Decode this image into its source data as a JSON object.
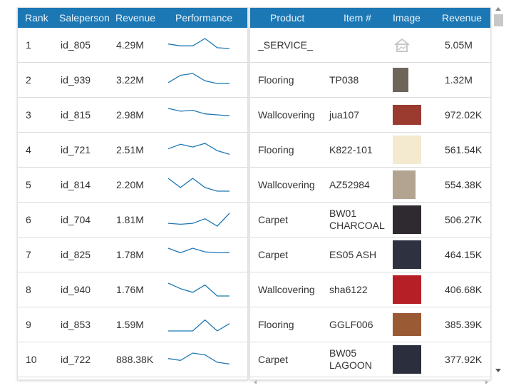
{
  "left_table": {
    "headers": {
      "rank": "Rank",
      "salesperson": "Saleperson",
      "revenue": "Revenue",
      "performance": "Performance"
    },
    "rows": [
      {
        "rank": "1",
        "salesperson": "id_805",
        "revenue": "4.29M",
        "trend": [
          4,
          3,
          3,
          7,
          2,
          1.5
        ]
      },
      {
        "rank": "2",
        "salesperson": "id_939",
        "revenue": "3.22M",
        "trend": [
          2,
          6,
          7,
          3,
          1.5,
          1.5
        ]
      },
      {
        "rank": "3",
        "salesperson": "id_815",
        "revenue": "2.98M",
        "trend": [
          7,
          5.5,
          6,
          4,
          3.5,
          3
        ]
      },
      {
        "rank": "4",
        "salesperson": "id_721",
        "revenue": "2.51M",
        "trend": [
          4,
          6.5,
          5,
          7,
          3,
          1
        ]
      },
      {
        "rank": "5",
        "salesperson": "id_814",
        "revenue": "2.20M",
        "trend": [
          7,
          2,
          7,
          2,
          0,
          0
        ]
      },
      {
        "rank": "6",
        "salesperson": "id_704",
        "revenue": "1.81M",
        "trend": [
          1.5,
          1,
          1.5,
          4,
          0,
          7
        ]
      },
      {
        "rank": "7",
        "salesperson": "id_825",
        "revenue": "1.78M",
        "trend": [
          7,
          4.5,
          7,
          5,
          4.5,
          4.5
        ]
      },
      {
        "rank": "8",
        "salesperson": "id_940",
        "revenue": "1.76M",
        "trend": [
          7,
          4,
          2,
          6,
          0,
          0
        ]
      },
      {
        "rank": "9",
        "salesperson": "id_853",
        "revenue": "1.59M",
        "trend": [
          0,
          0,
          0,
          6,
          0,
          4
        ]
      },
      {
        "rank": "10",
        "salesperson": "id_722",
        "revenue": "888.38K",
        "trend": [
          4,
          3,
          7,
          6,
          2,
          1
        ]
      }
    ]
  },
  "right_table": {
    "headers": {
      "product": "Product",
      "item": "Item #",
      "image": "Image",
      "revenue": "Revenue"
    },
    "rows": [
      {
        "product": "_SERVICE_",
        "item": "",
        "revenue": "5.05M",
        "image": "service-icon",
        "color": "#c8c8c8"
      },
      {
        "product": "Flooring",
        "item": "TP038",
        "revenue": "1.32M",
        "image": "swatch",
        "color": "#6e655b"
      },
      {
        "product": "Wallcovering",
        "item": "jua107",
        "revenue": "972.02K",
        "image": "swatch",
        "color": "#9b3a2e"
      },
      {
        "product": "Flooring",
        "item": "K822-101",
        "revenue": "561.54K",
        "image": "swatch",
        "color": "#f3ead0"
      },
      {
        "product": "Wallcovering",
        "item": "AZ52984",
        "revenue": "554.38K",
        "image": "swatch",
        "color": "#b3a491"
      },
      {
        "product": "Carpet",
        "item": "BW01 CHARCOAL",
        "revenue": "506.27K",
        "image": "swatch",
        "color": "#2e2a2f"
      },
      {
        "product": "Carpet",
        "item": "ES05 ASH",
        "revenue": "464.15K",
        "image": "swatch",
        "color": "#2d3140"
      },
      {
        "product": "Wallcovering",
        "item": "sha6122",
        "revenue": "406.68K",
        "image": "swatch",
        "color": "#b61f25"
      },
      {
        "product": "Flooring",
        "item": "GGLF006",
        "revenue": "385.39K",
        "image": "swatch",
        "color": "#9a5a34"
      },
      {
        "product": "Carpet",
        "item": "BW05 LAGOON",
        "revenue": "377.92K",
        "image": "swatch",
        "color": "#2a2e3d"
      }
    ]
  },
  "colors": {
    "header_bg": "#1c78b4",
    "sparkline": "#1f77b4"
  }
}
